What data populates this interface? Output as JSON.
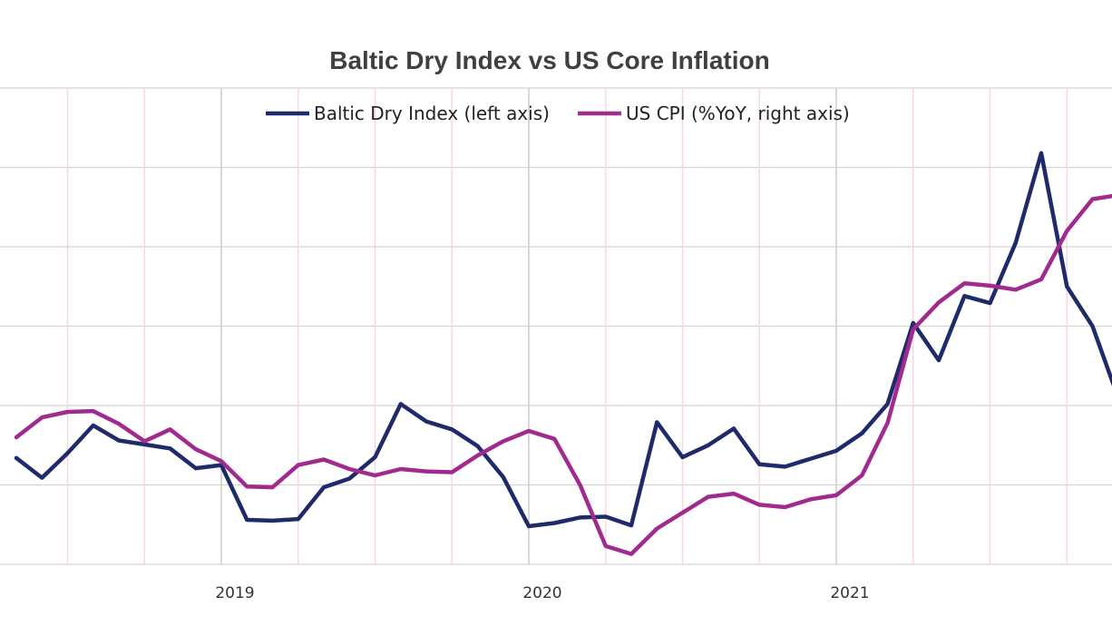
{
  "chart_data": {
    "type": "line",
    "title": "Baltic Dry Index vs US Core Inflation",
    "xlabel": "",
    "ylabel": "",
    "x_tick_labels": [
      "2019",
      "2020",
      "2021"
    ],
    "x_start": "2018-05",
    "months": [
      "2018-05",
      "2018-06",
      "2018-07",
      "2018-08",
      "2018-09",
      "2018-10",
      "2018-11",
      "2018-12",
      "2019-01",
      "2019-02",
      "2019-03",
      "2019-04",
      "2019-05",
      "2019-06",
      "2019-07",
      "2019-08",
      "2019-09",
      "2019-10",
      "2019-11",
      "2019-12",
      "2020-01",
      "2020-02",
      "2020-03",
      "2020-04",
      "2020-05",
      "2020-06",
      "2020-07",
      "2020-08",
      "2020-09",
      "2020-10",
      "2020-11",
      "2020-12",
      "2021-01",
      "2021-02",
      "2021-03",
      "2021-04",
      "2021-05",
      "2021-06",
      "2021-07",
      "2021-08",
      "2021-09",
      "2021-10",
      "2021-11",
      "2021-12"
    ],
    "ylim_left": [
      0,
      6000
    ],
    "ylim_right": [
      0,
      6
    ],
    "grid": true,
    "legend_position": "top",
    "series": [
      {
        "name": "Baltic Dry Index (left axis)",
        "axis": "left",
        "color": "#1f2a6b",
        "values": [
          1340,
          1090,
          1400,
          1750,
          1560,
          1510,
          1460,
          1210,
          1250,
          560,
          550,
          570,
          970,
          1080,
          1350,
          2020,
          1800,
          1700,
          1490,
          1100,
          480,
          520,
          590,
          600,
          490,
          1790,
          1350,
          1500,
          1710,
          1260,
          1230,
          1330,
          1430,
          1650,
          2020,
          3040,
          2570,
          3380,
          3290,
          4050,
          5180,
          3500,
          3000,
          2100
        ]
      },
      {
        "name": "US CPI (%YoY, right axis)",
        "axis": "right",
        "color": "#a12a8f",
        "values": [
          1.6,
          1.85,
          1.92,
          1.93,
          1.77,
          1.55,
          1.7,
          1.45,
          1.3,
          0.98,
          0.97,
          1.25,
          1.32,
          1.2,
          1.12,
          1.2,
          1.17,
          1.16,
          1.37,
          1.55,
          1.68,
          1.58,
          1.0,
          0.23,
          0.13,
          0.45,
          0.65,
          0.85,
          0.89,
          0.75,
          0.72,
          0.82,
          0.87,
          1.12,
          1.78,
          2.96,
          3.3,
          3.54,
          3.51,
          3.46,
          3.59,
          4.2,
          4.6,
          4.65
        ]
      }
    ]
  }
}
